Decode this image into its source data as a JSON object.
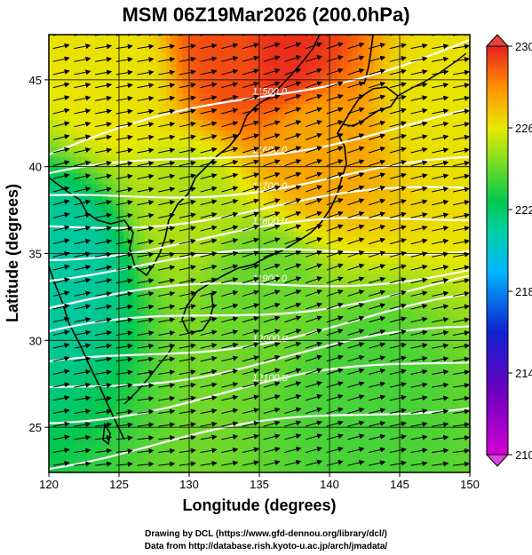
{
  "title": "MSM 06Z19Mar2026 (200.0hPa)",
  "credits": {
    "line1": "Drawing by DCL (https://www.gfd-dennou.org/library/dcl/)",
    "line2": "Data from http://database.rish.kyoto-u.ac.jp/arch/jmadata/"
  },
  "chart_data": {
    "type": "heatmap",
    "title": "MSM 06Z19Mar2026 (200.0hPa)",
    "xlabel": "Longitude (degrees)",
    "ylabel": "Latitude  (degrees)",
    "xlim": [
      120,
      150
    ],
    "ylim": [
      22.4,
      47.6
    ],
    "xticks": [
      120,
      125,
      130,
      135,
      140,
      145,
      150
    ],
    "yticks": [
      25,
      30,
      35,
      40,
      45
    ],
    "colorbar": {
      "min": 210,
      "max": 230,
      "ticks": [
        210,
        214,
        218,
        222,
        226,
        230
      ],
      "colors": [
        "#d400d4",
        "#1020d0",
        "#00c8ff",
        "#00c850",
        "#e8e800",
        "#ff8000",
        "#e82020"
      ]
    },
    "field_samples": [
      {
        "lon": 121,
        "lat": 34.5,
        "value": 218.5
      },
      {
        "lon": 125,
        "lat": 45,
        "value": 223.5
      },
      {
        "lon": 133,
        "lat": 46.5,
        "value": 228.5
      },
      {
        "lon": 137,
        "lat": 46.5,
        "value": 229.5
      },
      {
        "lon": 139,
        "lat": 41.5,
        "value": 225.5
      },
      {
        "lon": 130,
        "lat": 38,
        "value": 222.5
      },
      {
        "lon": 135,
        "lat": 33,
        "value": 221.5
      },
      {
        "lon": 142,
        "lat": 27,
        "value": 221.0
      },
      {
        "lon": 148,
        "lat": 44,
        "value": 223.5
      }
    ],
    "contours": [
      {
        "label": "11500.0",
        "lat0": 40.7,
        "lat1": 47.3
      },
      {
        "label": "11600.0",
        "lat0": 39.2,
        "lat1": 42.9
      },
      {
        "label": "11700.0",
        "lat0": 37.9,
        "lat1": 40.1
      },
      {
        "label": "",
        "lat0": 36.5,
        "lat1": 38.7
      },
      {
        "label": "11800.0",
        "lat0": 35.0,
        "lat1": 37.3
      },
      {
        "label": "",
        "lat0": 33.9,
        "lat1": 35.6
      },
      {
        "label": "11900.0",
        "lat0": 32.0,
        "lat1": 34.2
      },
      {
        "label": "",
        "lat0": 30.2,
        "lat1": 33.4
      },
      {
        "label": "12000.0",
        "lat0": 28.3,
        "lat1": 32.2
      },
      {
        "label": "",
        "lat0": 27.1,
        "lat1": 30.6
      },
      {
        "label": "12100.0",
        "lat0": 25.5,
        "lat1": 29.0
      },
      {
        "label": "",
        "lat0": 23.1,
        "lat1": 26.6
      }
    ],
    "wind_vectors": "streamline arrows, predominantly westerly (eastward)"
  }
}
